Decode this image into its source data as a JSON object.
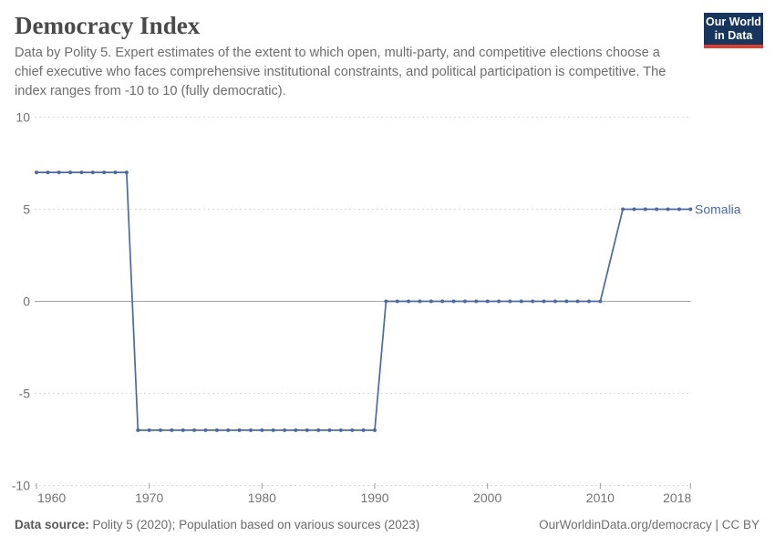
{
  "header": {
    "title": "Democracy Index",
    "subtitle_lines": [
      "Data by Polity 5. Expert estimates of the extent to which open, multi-party, and competitive elections choose a",
      "chief executive who faces comprehensive institutional constraints, and political participation is competitive. The",
      "index ranges from -10 to 10 (fully democratic)."
    ]
  },
  "logo": {
    "line1": "Our World",
    "line2": "in Data",
    "bg_color": "#18365d",
    "accent_color": "#dc3e32"
  },
  "chart_data": {
    "type": "line",
    "title": "Democracy Index",
    "xlabel": "",
    "ylabel": "",
    "xlim": [
      1960,
      2018
    ],
    "ylim": [
      -10,
      10
    ],
    "x_ticks": [
      1960,
      1970,
      1980,
      1990,
      2000,
      2010,
      2018
    ],
    "y_ticks": [
      10,
      5,
      0,
      -5,
      -10
    ],
    "grid": "horizontal-dashed, solid zero line",
    "legend_position": "end-of-line label",
    "gap_years": [
      2011
    ],
    "series": [
      {
        "name": "Somalia",
        "color": "#4c6a9c",
        "points": [
          [
            1960,
            7
          ],
          [
            1961,
            7
          ],
          [
            1962,
            7
          ],
          [
            1963,
            7
          ],
          [
            1964,
            7
          ],
          [
            1965,
            7
          ],
          [
            1966,
            7
          ],
          [
            1967,
            7
          ],
          [
            1968,
            7
          ],
          [
            1969,
            -7
          ],
          [
            1970,
            -7
          ],
          [
            1971,
            -7
          ],
          [
            1972,
            -7
          ],
          [
            1973,
            -7
          ],
          [
            1974,
            -7
          ],
          [
            1975,
            -7
          ],
          [
            1976,
            -7
          ],
          [
            1977,
            -7
          ],
          [
            1978,
            -7
          ],
          [
            1979,
            -7
          ],
          [
            1980,
            -7
          ],
          [
            1981,
            -7
          ],
          [
            1982,
            -7
          ],
          [
            1983,
            -7
          ],
          [
            1984,
            -7
          ],
          [
            1985,
            -7
          ],
          [
            1986,
            -7
          ],
          [
            1987,
            -7
          ],
          [
            1988,
            -7
          ],
          [
            1989,
            -7
          ],
          [
            1990,
            -7
          ],
          [
            1991,
            0
          ],
          [
            1992,
            0
          ],
          [
            1993,
            0
          ],
          [
            1994,
            0
          ],
          [
            1995,
            0
          ],
          [
            1996,
            0
          ],
          [
            1997,
            0
          ],
          [
            1998,
            0
          ],
          [
            1999,
            0
          ],
          [
            2000,
            0
          ],
          [
            2001,
            0
          ],
          [
            2002,
            0
          ],
          [
            2003,
            0
          ],
          [
            2004,
            0
          ],
          [
            2005,
            0
          ],
          [
            2006,
            0
          ],
          [
            2007,
            0
          ],
          [
            2008,
            0
          ],
          [
            2009,
            0
          ],
          [
            2010,
            0
          ],
          [
            2012,
            5
          ],
          [
            2013,
            5
          ],
          [
            2014,
            5
          ],
          [
            2015,
            5
          ],
          [
            2016,
            5
          ],
          [
            2017,
            5
          ],
          [
            2018,
            5
          ]
        ]
      }
    ]
  },
  "footer": {
    "source_label": "Data source:",
    "source_text": " Polity 5 (2020); Population based on various sources (2023)",
    "right_text": "OurWorldinData.org/democracy | CC BY"
  }
}
